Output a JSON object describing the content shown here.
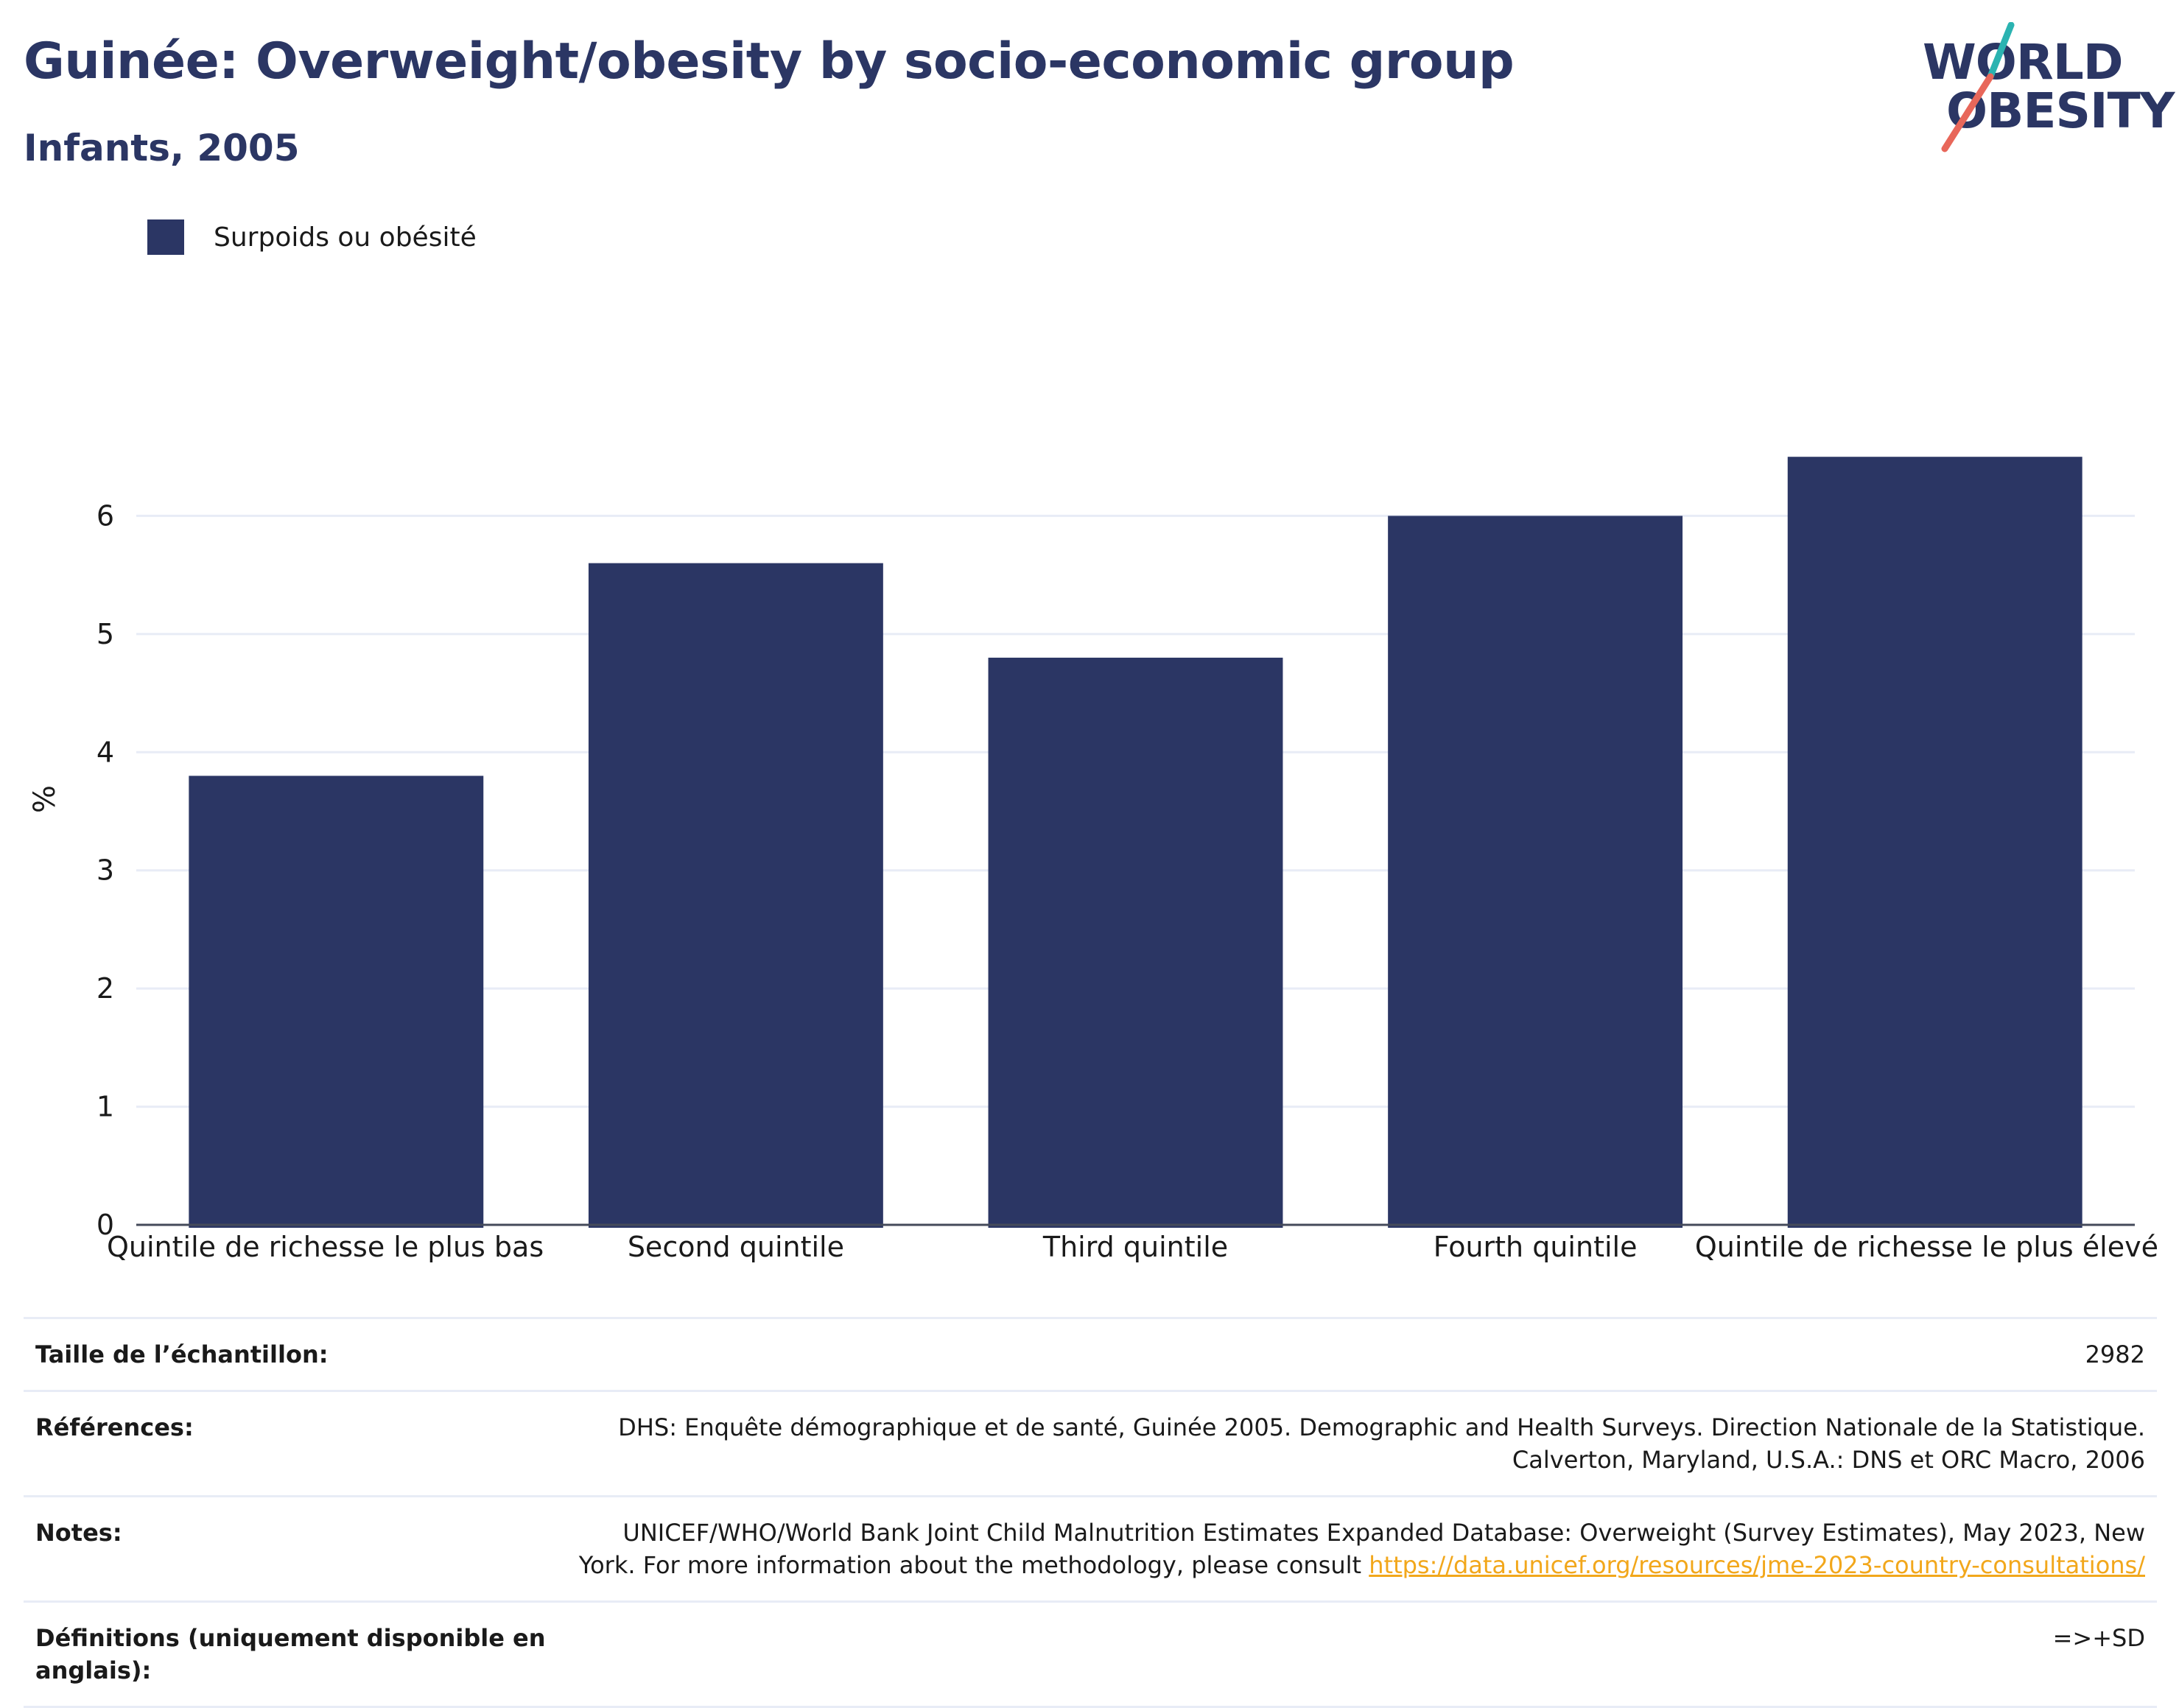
{
  "header": {
    "title": "Guinée: Overweight/obesity by socio-economic group",
    "subtitle": "Infants, 2005"
  },
  "logo": {
    "line1": "WORLD",
    "line2": "OBESITY",
    "colors": {
      "navy": "#2b3664",
      "teal": "#2bb3b1",
      "coral": "#e8675a"
    }
  },
  "legend": {
    "label": "Surpoids ou obésité",
    "color": "#2b3664"
  },
  "chart_data": {
    "type": "bar",
    "categories": [
      "Quintile de richesse le plus bas",
      "Second quintile",
      "Third quintile",
      "Fourth quintile",
      "Quintile de richesse le plus élevé"
    ],
    "series": [
      {
        "name": "Surpoids ou obésité",
        "values": [
          3.8,
          5.6,
          4.8,
          6.0,
          6.5
        ],
        "color": "#2b3664"
      }
    ],
    "ylabel": "%",
    "xlabel": "",
    "ylim": [
      0,
      7
    ],
    "yticks": [
      0,
      1,
      2,
      3,
      4,
      5,
      6
    ],
    "grid": true,
    "legend_position": "top-left"
  },
  "info": {
    "sample_label": "Taille de l’échantillon:",
    "sample_value": "2982",
    "references_label": "Références:",
    "references_line1": "DHS: Enquête démographique et de santé, Guinée 2005. Demographic and Health Surveys. Direction Nationale de la Statistique.",
    "references_line2": "Calverton, Maryland, U.S.A.: DNS et ORC Macro, 2006",
    "notes_label": "Notes:",
    "notes_line1": "UNICEF/WHO/World Bank Joint Child Malnutrition Estimates Expanded Database: Overweight (Survey Estimates), May 2023, New",
    "notes_line2": "York. For more information about the methodology, please consult",
    "notes_link": "https://data.unicef.org/resources/jme-2023-country-consultations/",
    "definitions_label": "Définitions (uniquement disponible en anglais):",
    "definitions_value": "=>+SD"
  }
}
